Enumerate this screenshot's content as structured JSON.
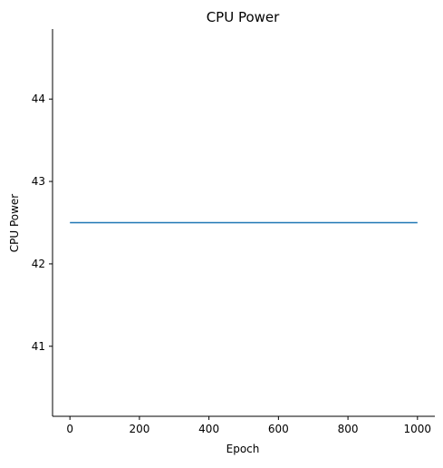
{
  "chart_data": {
    "type": "line",
    "title": "CPU Power",
    "xlabel": "Epoch",
    "ylabel": "CPU Power",
    "xlim": [
      -50,
      1050
    ],
    "ylim": [
      40.15,
      44.85
    ],
    "x_ticks": [
      0,
      200,
      400,
      600,
      800,
      1000
    ],
    "y_ticks": [
      41,
      42,
      43,
      44
    ],
    "x_tick_labels": [
      "0",
      "200",
      "400",
      "600",
      "800",
      "1000"
    ],
    "y_tick_labels": [
      "41",
      "42",
      "43",
      "44"
    ],
    "grid": false,
    "spines": [
      "left",
      "bottom"
    ],
    "series": [
      {
        "color": "#1f77b4",
        "x": [
          0,
          1000
        ],
        "y": [
          42.5,
          42.5
        ]
      }
    ]
  }
}
